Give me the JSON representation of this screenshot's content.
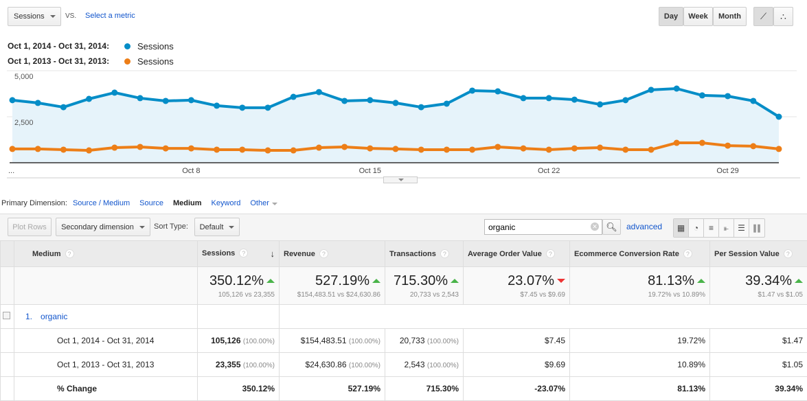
{
  "top": {
    "metric": "Sessions",
    "vs": "VS.",
    "select_metric": "Select a metric",
    "periods": [
      "Day",
      "Week",
      "Month"
    ],
    "active_period": "Day"
  },
  "legend": [
    {
      "range": "Oct 1, 2014 - Oct 31, 2014:",
      "label": "Sessions",
      "color": "#058dc7"
    },
    {
      "range": "Oct 1, 2013 - Oct 31, 2013:",
      "label": "Sessions",
      "color": "#ed7e17"
    }
  ],
  "chart_data": {
    "type": "area",
    "ylim": [
      0,
      5000
    ],
    "yticks": [
      "5,000",
      "2,500"
    ],
    "xticks": [
      {
        "day": 8,
        "label": "Oct 8"
      },
      {
        "day": 15,
        "label": "Oct 15"
      },
      {
        "day": 22,
        "label": "Oct 22"
      },
      {
        "day": 29,
        "label": "Oct 29"
      }
    ],
    "first_tick": "...",
    "x": [
      1,
      2,
      3,
      4,
      5,
      6,
      7,
      8,
      9,
      10,
      11,
      12,
      13,
      14,
      15,
      16,
      17,
      18,
      19,
      20,
      21,
      22,
      23,
      24,
      25,
      26,
      27,
      28,
      29,
      30,
      31
    ],
    "series": [
      {
        "name": "Sessions",
        "period": "Oct 1, 2014 - Oct 31, 2014",
        "color": "#058dc7",
        "values": [
          3400,
          3250,
          3020,
          3470,
          3810,
          3510,
          3360,
          3400,
          3100,
          2990,
          2990,
          3580,
          3840,
          3360,
          3400,
          3250,
          3020,
          3210,
          3920,
          3880,
          3510,
          3510,
          3430,
          3170,
          3400,
          3960,
          4030,
          3660,
          3620,
          3360,
          2500
        ]
      },
      {
        "name": "Sessions",
        "period": "Oct 1, 2013 - Oct 31, 2013",
        "color": "#ed7e17",
        "values": [
          750,
          750,
          710,
          670,
          820,
          860,
          780,
          780,
          710,
          710,
          670,
          670,
          820,
          860,
          780,
          750,
          710,
          710,
          710,
          860,
          780,
          710,
          780,
          820,
          710,
          710,
          1080,
          1080,
          930,
          900,
          750
        ]
      }
    ]
  },
  "dimension": {
    "label": "Primary Dimension:",
    "options": [
      "Source / Medium",
      "Source",
      "Medium",
      "Keyword",
      "Other"
    ],
    "active": "Medium"
  },
  "toolbar": {
    "plot_rows": "Plot Rows",
    "secondary": "Secondary dimension",
    "sort_label": "Sort Type:",
    "sort_value": "Default",
    "search_value": "organic",
    "advanced": "advanced"
  },
  "table": {
    "headers": [
      "Medium",
      "Sessions",
      "Revenue",
      "Transactions",
      "Average Order Value",
      "Ecommerce Conversion Rate",
      "Per Session Value"
    ],
    "summary": [
      {
        "pct": "350.12%",
        "dir": "up",
        "cmp": "105,126 vs 23,355"
      },
      {
        "pct": "527.19%",
        "dir": "up",
        "cmp": "$154,483.51 vs $24,630.86"
      },
      {
        "pct": "715.30%",
        "dir": "up",
        "cmp": "20,733 vs 2,543"
      },
      {
        "pct": "23.07%",
        "dir": "down",
        "cmp": "$7.45 vs $9.69"
      },
      {
        "pct": "81.13%",
        "dir": "up",
        "cmp": "19.72% vs 10.89%"
      },
      {
        "pct": "39.34%",
        "dir": "up",
        "cmp": "$1.47 vs $1.05"
      }
    ],
    "group": {
      "index": "1.",
      "name": "organic"
    },
    "rows": [
      {
        "label": "Oct 1, 2014 - Oct 31, 2014",
        "sessions": "105,126",
        "sessions_pct": "(100.00%)",
        "revenue": "$154,483.51",
        "revenue_pct": "(100.00%)",
        "transactions": "20,733",
        "transactions_pct": "(100.00%)",
        "aov": "$7.45",
        "ecr": "19.72%",
        "psv": "$1.47"
      },
      {
        "label": "Oct 1, 2013 - Oct 31, 2013",
        "sessions": "23,355",
        "sessions_pct": "(100.00%)",
        "revenue": "$24,630.86",
        "revenue_pct": "(100.00%)",
        "transactions": "2,543",
        "transactions_pct": "(100.00%)",
        "aov": "$9.69",
        "ecr": "10.89%",
        "psv": "$1.05"
      }
    ],
    "change": {
      "label": "% Change",
      "sessions": "350.12%",
      "revenue": "527.19%",
      "transactions": "715.30%",
      "aov": "-23.07%",
      "ecr": "81.13%",
      "psv": "39.34%"
    }
  }
}
